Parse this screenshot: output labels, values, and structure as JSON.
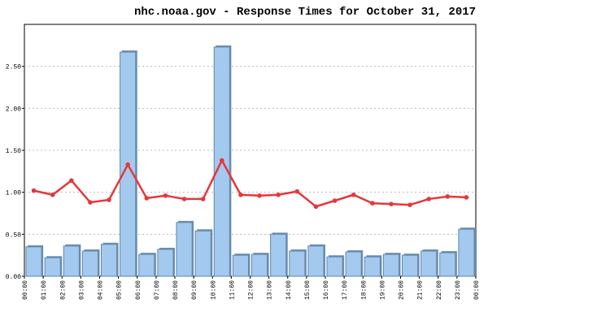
{
  "chart_data": {
    "type": "bar-line",
    "title": "nhc.noaa.gov - Response Times for October 31, 2017",
    "x_boundaries": [
      "00:00",
      "01:00",
      "02:00",
      "03:00",
      "04:00",
      "05:00",
      "06:00",
      "07:00",
      "08:00",
      "09:00",
      "10:00",
      "11:00",
      "12:00",
      "13:00",
      "14:00",
      "15:00",
      "16:00",
      "17:00",
      "18:00",
      "19:00",
      "20:00",
      "21:00",
      "22:00",
      "23:00",
      "00:00"
    ],
    "series": [
      {
        "type": "bar",
        "color": "#a4c9ee",
        "values": [
          0.35,
          0.22,
          0.36,
          0.3,
          0.38,
          2.67,
          0.26,
          0.32,
          0.64,
          0.54,
          2.73,
          0.25,
          0.26,
          0.5,
          0.3,
          0.36,
          0.23,
          0.29,
          0.23,
          0.26,
          0.25,
          0.3,
          0.28,
          0.56
        ]
      },
      {
        "type": "line",
        "color": "#e4383c",
        "values": [
          1.02,
          0.97,
          1.14,
          0.88,
          0.91,
          1.33,
          0.93,
          0.96,
          0.92,
          0.92,
          1.38,
          0.97,
          0.96,
          0.97,
          1.01,
          0.83,
          0.9,
          0.97,
          0.87,
          0.86,
          0.85,
          0.92,
          0.95,
          0.94
        ]
      }
    ],
    "ylim": [
      0,
      3
    ],
    "yticks": [
      {
        "value": 0,
        "label": "0.00"
      },
      {
        "value": 0.5,
        "label": "0.50"
      },
      {
        "value": 1,
        "label": "1.00"
      },
      {
        "value": 1.5,
        "label": "1.50"
      },
      {
        "value": 2,
        "label": "2.00"
      },
      {
        "value": 2.5,
        "label": "2.50"
      }
    ],
    "grid": true
  }
}
